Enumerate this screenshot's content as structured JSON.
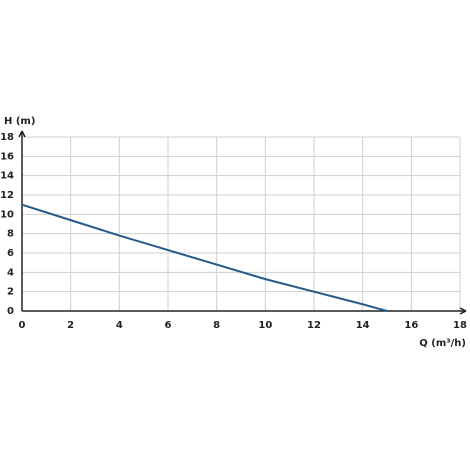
{
  "chart_data": {
    "type": "line",
    "y_label": "H (m)",
    "x_label": "Q (m³/h)",
    "x": [
      0,
      2,
      4,
      6,
      8,
      10,
      12,
      14,
      15
    ],
    "series": [
      {
        "name": null,
        "color": "#255a8a",
        "values": [
          11,
          9.4,
          7.8,
          6.3,
          4.8,
          3.3,
          2.0,
          0.7,
          0
        ]
      }
    ],
    "xlim": [
      0,
      18
    ],
    "ylim": [
      0,
      18
    ],
    "xticks": [
      0,
      2,
      4,
      6,
      8,
      10,
      12,
      14,
      16,
      18
    ],
    "yticks": [
      0,
      2,
      4,
      6,
      8,
      10,
      12,
      14,
      16,
      18
    ],
    "grid": true
  }
}
